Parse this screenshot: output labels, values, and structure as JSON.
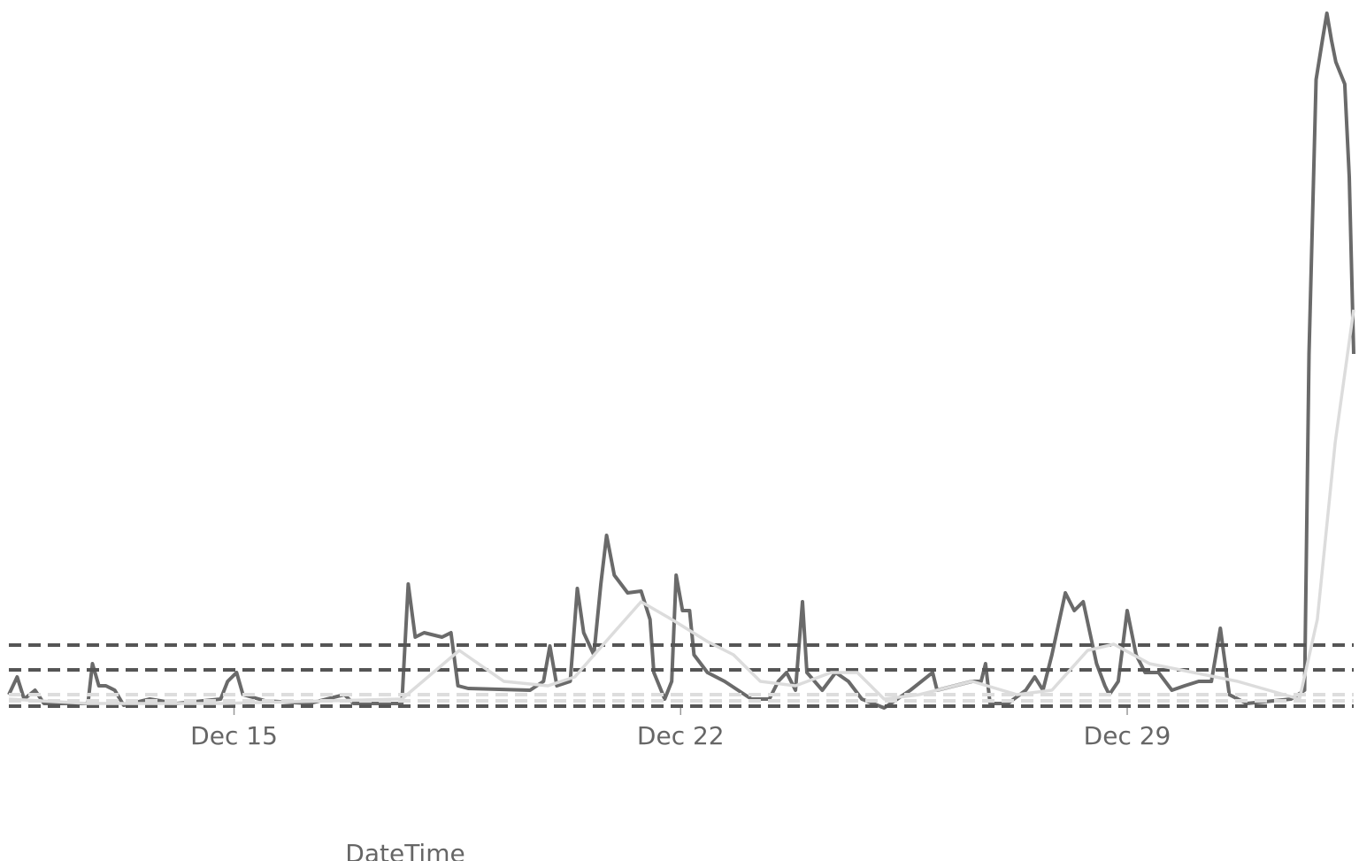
{
  "chart_data": {
    "type": "line",
    "x_label": "DateTime",
    "xlim": [
      11.47,
      32.55
    ],
    "xticks": [
      {
        "value": 15,
        "label": "Dec 15"
      },
      {
        "value": 22,
        "label": "Dec 22"
      },
      {
        "value": 29,
        "label": "Dec 29"
      }
    ],
    "ylim": [
      0,
      80
    ],
    "grid": false,
    "reference_lines": [
      {
        "value": 7.1,
        "color": "#555555"
      },
      {
        "value": 4.3,
        "color": "#555555"
      },
      {
        "value": 1.5,
        "color": "#dddddd"
      },
      {
        "value": 0.8,
        "color": "#dddddd"
      },
      {
        "value": 0.2,
        "color": "#555555"
      }
    ],
    "series": [
      {
        "color": "#6a6a6a",
        "x": [
          11.47,
          11.6,
          11.71,
          11.88,
          12.02,
          12.71,
          12.78,
          12.88,
          12.99,
          13.13,
          13.27,
          13.68,
          14.1,
          14.79,
          14.9,
          15.04,
          15.14,
          15.49,
          16.18,
          16.73,
          16.87,
          17.63,
          17.73,
          17.84,
          17.98,
          18.26,
          18.4,
          18.51,
          18.67,
          19.64,
          19.85,
          19.95,
          20.06,
          20.27,
          20.38,
          20.48,
          20.64,
          20.75,
          20.84,
          20.96,
          21.17,
          21.38,
          21.52,
          21.58,
          21.75,
          21.86,
          21.93,
          22.03,
          22.14,
          22.21,
          22.42,
          22.69,
          23.11,
          23.39,
          23.53,
          23.66,
          23.8,
          23.91,
          23.98,
          24.22,
          24.43,
          24.63,
          24.84,
          25.19,
          25.6,
          25.95,
          26.02,
          26.57,
          26.71,
          26.78,
          26.85,
          27.13,
          27.41,
          27.55,
          27.68,
          27.82,
          28.03,
          28.17,
          28.31,
          28.52,
          28.65,
          28.72,
          28.86,
          29.0,
          29.14,
          29.28,
          29.49,
          29.7,
          29.9,
          30.12,
          30.32,
          30.46,
          30.6,
          30.87,
          31.57,
          31.78,
          31.85,
          31.96,
          32.06,
          32.13,
          32.2,
          32.27,
          32.41,
          32.48,
          32.55
        ],
        "values": [
          1.5,
          3.5,
          1.0,
          2.0,
          0.5,
          0.5,
          5.0,
          2.5,
          2.5,
          2.0,
          0.3,
          1.0,
          0.5,
          1.0,
          3.0,
          4.0,
          1.5,
          0.8,
          0.5,
          1.5,
          0.5,
          0.5,
          14.0,
          8.0,
          8.5,
          8.0,
          8.5,
          2.5,
          2.2,
          2.0,
          3.0,
          7.0,
          2.5,
          3.0,
          13.5,
          8.5,
          6.0,
          14.0,
          19.5,
          15.0,
          13.0,
          13.2,
          10.0,
          4.0,
          1.0,
          3.0,
          15.0,
          11.0,
          11.0,
          6.0,
          4.0,
          3.0,
          1.0,
          1.0,
          3.0,
          4.0,
          2.0,
          12.0,
          4.0,
          2.0,
          4.0,
          3.0,
          1.0,
          0.0,
          2.0,
          4.0,
          2.0,
          3.0,
          3.0,
          5.0,
          0.5,
          0.5,
          2.0,
          3.5,
          2.0,
          6.0,
          13.0,
          11.0,
          12.0,
          5.0,
          2.5,
          1.5,
          3.0,
          11.0,
          6.0,
          4.0,
          4.0,
          2.0,
          2.5,
          3.0,
          3.0,
          9.0,
          1.5,
          0.5,
          1.0,
          2.0,
          40.0,
          71.0,
          75.5,
          78.5,
          75.5,
          73.0,
          70.5,
          60.0,
          40.0
        ]
      },
      {
        "color": "#dcdcdc",
        "x": [
          11.47,
          12.71,
          14.79,
          17.63,
          18.53,
          19.23,
          19.92,
          20.34,
          20.89,
          21.38,
          21.86,
          22.42,
          22.83,
          23.25,
          23.8,
          24.36,
          24.77,
          25.19,
          25.74,
          26.57,
          27.27,
          27.82,
          28.38,
          28.79,
          29.35,
          30.04,
          30.73,
          31.7,
          31.98,
          32.26,
          32.55
        ],
        "values": [
          1.0,
          0.5,
          0.5,
          1.0,
          6.5,
          3.0,
          2.5,
          3.5,
          8.0,
          12.0,
          10.0,
          7.5,
          6.0,
          3.0,
          2.5,
          4.0,
          4.0,
          1.0,
          1.5,
          3.0,
          1.5,
          2.0,
          6.5,
          7.2,
          5.0,
          4.0,
          3.0,
          1.0,
          10.0,
          30.0,
          45.0
        ]
      }
    ]
  }
}
